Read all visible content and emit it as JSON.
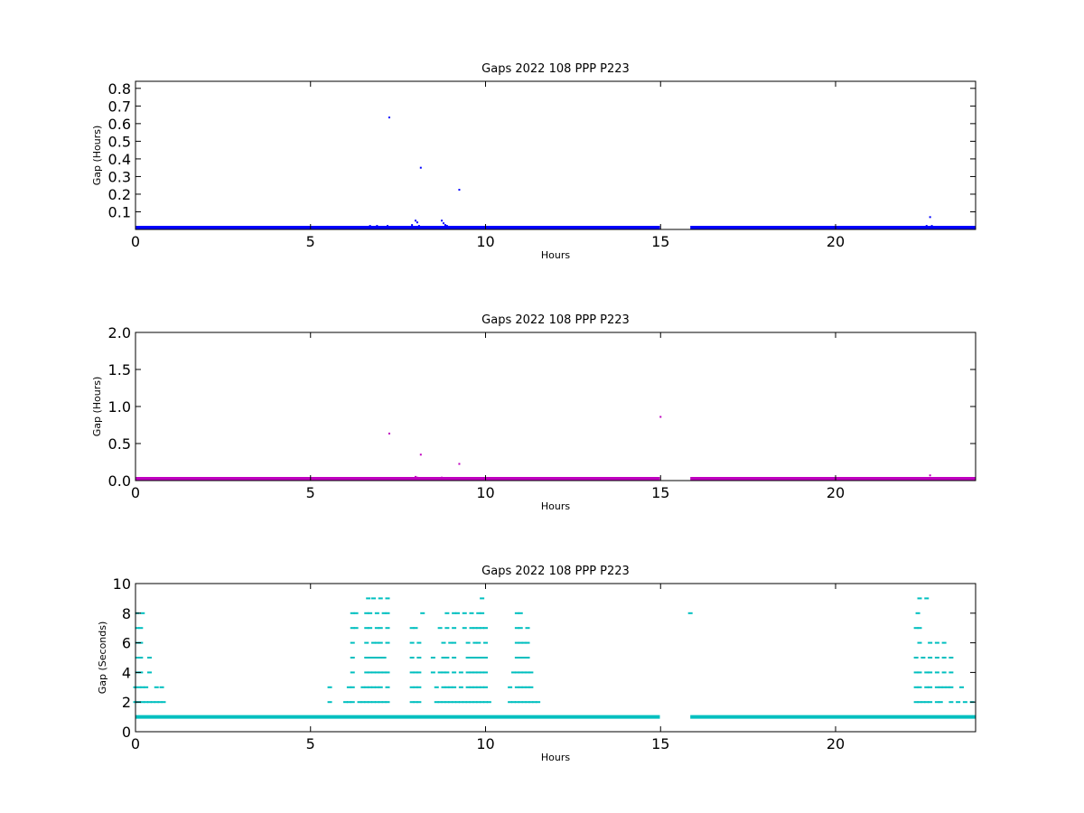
{
  "chart_data": [
    {
      "type": "scatter",
      "title": "Gaps 2022 108 PPP  P223",
      "xlabel": "Hours",
      "ylabel": "Gap (Hours)",
      "xlim": [
        0,
        24
      ],
      "ylim": [
        0,
        0.84
      ],
      "xticks": [
        0,
        5,
        10,
        15,
        20
      ],
      "xtick_labels": [
        "0",
        "5",
        "10",
        "15",
        "20"
      ],
      "yticks": [
        0.1,
        0.2,
        0.3,
        0.4,
        0.5,
        0.6,
        0.7,
        0.8
      ],
      "ytick_labels": [
        "0.1",
        "0.2",
        "0.3",
        "0.4",
        "0.5",
        "0.6",
        "0.7",
        "0.8"
      ],
      "grid": false,
      "color": "#0000ff",
      "baseline_bands": [
        {
          "x_start": 0.0,
          "x_end": 14.98,
          "y": 0.0003
        },
        {
          "x_start": 15.85,
          "x_end": 24.0,
          "y": 0.0003
        }
      ],
      "points": [
        [
          7.25,
          0.635
        ],
        [
          8.15,
          0.35
        ],
        [
          9.25,
          0.225
        ],
        [
          22.7,
          0.07
        ],
        [
          6.7,
          0.02
        ],
        [
          6.8,
          0.015
        ],
        [
          6.9,
          0.02
        ],
        [
          7.0,
          0.012
        ],
        [
          7.2,
          0.02
        ],
        [
          7.9,
          0.025
        ],
        [
          8.0,
          0.05
        ],
        [
          8.05,
          0.04
        ],
        [
          8.1,
          0.02
        ],
        [
          8.2,
          0.012
        ],
        [
          8.75,
          0.05
        ],
        [
          8.8,
          0.035
        ],
        [
          8.85,
          0.025
        ],
        [
          8.9,
          0.02
        ],
        [
          9.0,
          0.015
        ],
        [
          22.6,
          0.02
        ],
        [
          22.75,
          0.02
        ]
      ]
    },
    {
      "type": "scatter",
      "title": "Gaps 2022 108 PPP  P223",
      "xlabel": "Hours",
      "ylabel": "Gap (Hours)",
      "xlim": [
        0,
        24
      ],
      "ylim": [
        0,
        2.0
      ],
      "xticks": [
        0,
        5,
        10,
        15,
        20
      ],
      "xtick_labels": [
        "0",
        "5",
        "10",
        "15",
        "20"
      ],
      "yticks": [
        0.0,
        0.5,
        1.0,
        1.5,
        2.0
      ],
      "ytick_labels": [
        "0.0",
        "0.5",
        "1.0",
        "1.5",
        "2.0"
      ],
      "grid": false,
      "color": "#bf00bf",
      "baseline_bands": [
        {
          "x_start": 0.0,
          "x_end": 14.98,
          "y": 0.0003
        },
        {
          "x_start": 15.85,
          "x_end": 24.0,
          "y": 0.0003
        }
      ],
      "points": [
        [
          7.25,
          0.635
        ],
        [
          8.15,
          0.35
        ],
        [
          9.25,
          0.225
        ],
        [
          15.0,
          0.86
        ],
        [
          22.7,
          0.07
        ],
        [
          6.8,
          0.02
        ],
        [
          7.0,
          0.015
        ],
        [
          7.2,
          0.02
        ],
        [
          7.9,
          0.03
        ],
        [
          8.0,
          0.05
        ],
        [
          8.05,
          0.04
        ],
        [
          8.1,
          0.02
        ],
        [
          8.75,
          0.04
        ],
        [
          8.85,
          0.03
        ],
        [
          9.0,
          0.02
        ]
      ]
    },
    {
      "type": "scatter",
      "title": "Gaps 2022 108 PPP  P223",
      "xlabel": "Hours",
      "ylabel": "Gap (Seconds)",
      "xlim": [
        0,
        24
      ],
      "ylim": [
        0,
        10
      ],
      "xticks": [
        0,
        5,
        10,
        15,
        20
      ],
      "xtick_labels": [
        "0",
        "5",
        "10",
        "15",
        "20"
      ],
      "yticks": [
        0,
        2,
        4,
        6,
        8,
        10
      ],
      "ytick_labels": [
        "0",
        "2",
        "4",
        "6",
        "8",
        "10"
      ],
      "grid": false,
      "color": "#00bfbf",
      "baseline_bands": [
        {
          "x_start": 0.0,
          "x_end": 14.98,
          "y": 1
        },
        {
          "x_start": 15.85,
          "x_end": 24.0,
          "y": 1
        }
      ],
      "points": [
        [
          0.0,
          2
        ],
        [
          0.1,
          2
        ],
        [
          0.2,
          2
        ],
        [
          0.3,
          2
        ],
        [
          0.4,
          2
        ],
        [
          0.5,
          2
        ],
        [
          0.6,
          2
        ],
        [
          0.7,
          2
        ],
        [
          0.8,
          2
        ],
        [
          0.0,
          3
        ],
        [
          0.1,
          3
        ],
        [
          0.2,
          3
        ],
        [
          0.3,
          3
        ],
        [
          0.6,
          3
        ],
        [
          0.75,
          3
        ],
        [
          0.05,
          4
        ],
        [
          0.15,
          4
        ],
        [
          0.4,
          4
        ],
        [
          0.05,
          5
        ],
        [
          0.15,
          5
        ],
        [
          0.4,
          5
        ],
        [
          0.05,
          6
        ],
        [
          0.15,
          6
        ],
        [
          0.05,
          7
        ],
        [
          0.15,
          7
        ],
        [
          0.05,
          8
        ],
        [
          0.2,
          8
        ],
        [
          5.55,
          2
        ],
        [
          5.55,
          3
        ],
        [
          6.0,
          2
        ],
        [
          6.1,
          2
        ],
        [
          6.2,
          2
        ],
        [
          6.4,
          2
        ],
        [
          6.5,
          2
        ],
        [
          6.6,
          2
        ],
        [
          6.7,
          2
        ],
        [
          6.8,
          2
        ],
        [
          6.9,
          2
        ],
        [
          7.0,
          2
        ],
        [
          7.1,
          2
        ],
        [
          7.2,
          2
        ],
        [
          6.1,
          3
        ],
        [
          6.2,
          3
        ],
        [
          6.5,
          3
        ],
        [
          6.6,
          3
        ],
        [
          6.7,
          3
        ],
        [
          6.8,
          3
        ],
        [
          6.9,
          3
        ],
        [
          7.0,
          3
        ],
        [
          7.2,
          3
        ],
        [
          6.2,
          4
        ],
        [
          6.6,
          4
        ],
        [
          6.7,
          4
        ],
        [
          6.8,
          4
        ],
        [
          6.9,
          4
        ],
        [
          7.0,
          4
        ],
        [
          7.1,
          4
        ],
        [
          7.2,
          4
        ],
        [
          6.2,
          5
        ],
        [
          6.6,
          5
        ],
        [
          6.7,
          5
        ],
        [
          6.8,
          5
        ],
        [
          6.9,
          5
        ],
        [
          7.0,
          5
        ],
        [
          7.1,
          5
        ],
        [
          6.2,
          6
        ],
        [
          6.6,
          6
        ],
        [
          6.8,
          6
        ],
        [
          6.9,
          6
        ],
        [
          7.0,
          6
        ],
        [
          7.2,
          6
        ],
        [
          6.2,
          7
        ],
        [
          6.3,
          7
        ],
        [
          6.6,
          7
        ],
        [
          6.7,
          7
        ],
        [
          6.9,
          7
        ],
        [
          7.0,
          7
        ],
        [
          7.2,
          7
        ],
        [
          6.2,
          8
        ],
        [
          6.3,
          8
        ],
        [
          6.6,
          8
        ],
        [
          6.7,
          8
        ],
        [
          6.9,
          8
        ],
        [
          7.1,
          8
        ],
        [
          7.2,
          8
        ],
        [
          6.65,
          9
        ],
        [
          6.8,
          9
        ],
        [
          7.0,
          9
        ],
        [
          7.2,
          9
        ],
        [
          7.9,
          1
        ],
        [
          8.1,
          1
        ],
        [
          7.9,
          2
        ],
        [
          8.0,
          2
        ],
        [
          8.1,
          2
        ],
        [
          8.6,
          2
        ],
        [
          8.7,
          2
        ],
        [
          8.8,
          2
        ],
        [
          8.9,
          2
        ],
        [
          9.0,
          2
        ],
        [
          9.1,
          2
        ],
        [
          9.2,
          2
        ],
        [
          9.3,
          2
        ],
        [
          9.4,
          2
        ],
        [
          9.5,
          2
        ],
        [
          9.6,
          2
        ],
        [
          9.7,
          2
        ],
        [
          9.8,
          2
        ],
        [
          9.9,
          2
        ],
        [
          10.0,
          2
        ],
        [
          10.1,
          2
        ],
        [
          7.9,
          3
        ],
        [
          8.0,
          3
        ],
        [
          8.1,
          3
        ],
        [
          8.6,
          3
        ],
        [
          8.8,
          3
        ],
        [
          8.9,
          3
        ],
        [
          9.0,
          3
        ],
        [
          9.1,
          3
        ],
        [
          9.3,
          3
        ],
        [
          9.5,
          3
        ],
        [
          9.6,
          3
        ],
        [
          9.7,
          3
        ],
        [
          9.8,
          3
        ],
        [
          9.9,
          3
        ],
        [
          10.0,
          3
        ],
        [
          7.9,
          4
        ],
        [
          8.0,
          4
        ],
        [
          8.1,
          4
        ],
        [
          8.5,
          4
        ],
        [
          8.7,
          4
        ],
        [
          8.8,
          4
        ],
        [
          8.9,
          4
        ],
        [
          9.1,
          4
        ],
        [
          9.3,
          4
        ],
        [
          9.5,
          4
        ],
        [
          9.6,
          4
        ],
        [
          9.7,
          4
        ],
        [
          9.8,
          4
        ],
        [
          9.9,
          4
        ],
        [
          10.0,
          4
        ],
        [
          7.9,
          5
        ],
        [
          8.1,
          5
        ],
        [
          8.5,
          5
        ],
        [
          8.8,
          5
        ],
        [
          8.9,
          5
        ],
        [
          9.1,
          5
        ],
        [
          9.5,
          5
        ],
        [
          9.6,
          5
        ],
        [
          9.7,
          5
        ],
        [
          9.8,
          5
        ],
        [
          9.9,
          5
        ],
        [
          10.0,
          5
        ],
        [
          7.9,
          6
        ],
        [
          8.1,
          6
        ],
        [
          8.8,
          6
        ],
        [
          9.0,
          6
        ],
        [
          9.1,
          6
        ],
        [
          9.5,
          6
        ],
        [
          9.7,
          6
        ],
        [
          9.8,
          6
        ],
        [
          10.0,
          6
        ],
        [
          7.9,
          7
        ],
        [
          8.0,
          7
        ],
        [
          8.7,
          7
        ],
        [
          8.9,
          7
        ],
        [
          9.1,
          7
        ],
        [
          9.4,
          7
        ],
        [
          9.6,
          7
        ],
        [
          9.7,
          7
        ],
        [
          9.8,
          7
        ],
        [
          9.9,
          7
        ],
        [
          10.0,
          7
        ],
        [
          8.2,
          8
        ],
        [
          8.9,
          8
        ],
        [
          9.1,
          8
        ],
        [
          9.2,
          8
        ],
        [
          9.4,
          8
        ],
        [
          9.6,
          8
        ],
        [
          9.8,
          8
        ],
        [
          9.9,
          8
        ],
        [
          9.9,
          9
        ],
        [
          10.7,
          2
        ],
        [
          10.8,
          2
        ],
        [
          10.9,
          2
        ],
        [
          11.0,
          2
        ],
        [
          11.1,
          2
        ],
        [
          11.2,
          2
        ],
        [
          11.3,
          2
        ],
        [
          11.4,
          2
        ],
        [
          11.5,
          2
        ],
        [
          10.7,
          3
        ],
        [
          10.9,
          3
        ],
        [
          11.0,
          3
        ],
        [
          11.1,
          3
        ],
        [
          11.2,
          3
        ],
        [
          11.3,
          3
        ],
        [
          10.8,
          4
        ],
        [
          10.9,
          4
        ],
        [
          11.0,
          4
        ],
        [
          11.1,
          4
        ],
        [
          11.2,
          4
        ],
        [
          11.3,
          4
        ],
        [
          10.9,
          5
        ],
        [
          11.0,
          5
        ],
        [
          11.1,
          5
        ],
        [
          11.2,
          5
        ],
        [
          10.9,
          6
        ],
        [
          11.0,
          6
        ],
        [
          11.1,
          6
        ],
        [
          11.2,
          6
        ],
        [
          10.9,
          7
        ],
        [
          11.0,
          7
        ],
        [
          11.2,
          7
        ],
        [
          10.9,
          8
        ],
        [
          11.0,
          8
        ],
        [
          15.85,
          8
        ],
        [
          22.3,
          2
        ],
        [
          22.4,
          2
        ],
        [
          22.5,
          2
        ],
        [
          22.6,
          2
        ],
        [
          22.7,
          2
        ],
        [
          22.9,
          2
        ],
        [
          23.0,
          2
        ],
        [
          23.3,
          2
        ],
        [
          23.5,
          2
        ],
        [
          23.7,
          2
        ],
        [
          23.9,
          2
        ],
        [
          22.3,
          3
        ],
        [
          22.4,
          3
        ],
        [
          22.6,
          3
        ],
        [
          22.7,
          3
        ],
        [
          22.9,
          3
        ],
        [
          23.0,
          3
        ],
        [
          23.1,
          3
        ],
        [
          23.2,
          3
        ],
        [
          23.3,
          3
        ],
        [
          23.6,
          3
        ],
        [
          22.3,
          4
        ],
        [
          22.4,
          4
        ],
        [
          22.6,
          4
        ],
        [
          22.7,
          4
        ],
        [
          22.9,
          4
        ],
        [
          23.1,
          4
        ],
        [
          23.3,
          4
        ],
        [
          22.3,
          5
        ],
        [
          22.5,
          5
        ],
        [
          22.7,
          5
        ],
        [
          22.9,
          5
        ],
        [
          23.1,
          5
        ],
        [
          23.3,
          5
        ],
        [
          22.4,
          6
        ],
        [
          22.7,
          6
        ],
        [
          22.9,
          6
        ],
        [
          23.1,
          6
        ],
        [
          22.3,
          7
        ],
        [
          22.4,
          7
        ],
        [
          22.35,
          8
        ],
        [
          22.4,
          9
        ],
        [
          22.6,
          9
        ]
      ]
    }
  ]
}
